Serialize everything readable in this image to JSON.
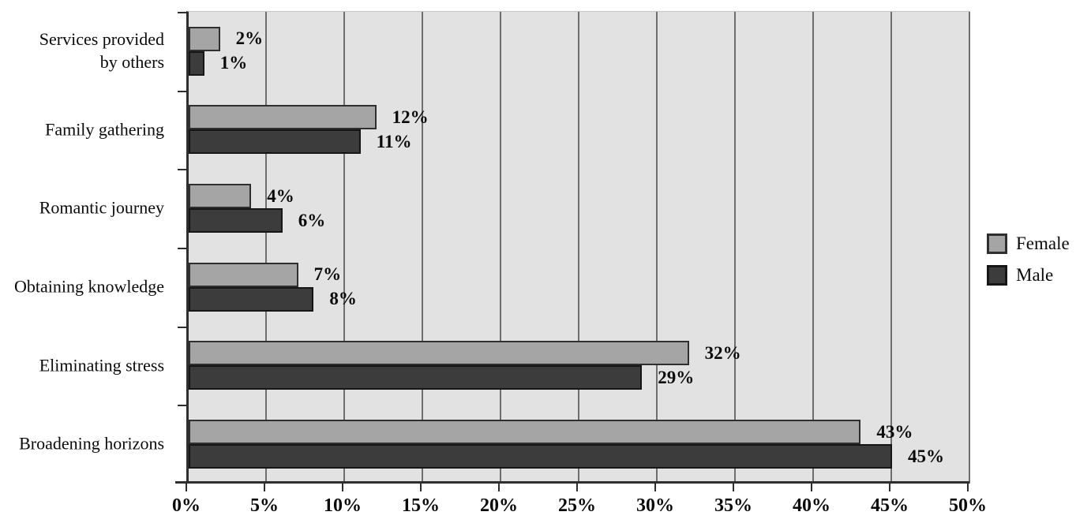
{
  "chart_data": {
    "type": "bar",
    "orientation": "horizontal",
    "title": "",
    "categories": [
      "Services provided by others",
      "Family gathering",
      "Romantic journey",
      "Obtaining knowledge",
      "Eliminating stress",
      "Broadening horizons"
    ],
    "category_display_lines": [
      [
        "Services provided",
        "by others"
      ],
      [
        "Family gathering"
      ],
      [
        "Romantic journey"
      ],
      [
        "Obtaining knowledge"
      ],
      [
        "Eliminating stress"
      ],
      [
        "Broadening horizons"
      ]
    ],
    "series": [
      {
        "name": "Female",
        "values": [
          2,
          12,
          4,
          7,
          32,
          43
        ],
        "labels": [
          "2%",
          "12%",
          "4%",
          "7%",
          "32%",
          "43%"
        ],
        "color": "#a5a5a5",
        "border_color": "#2f2f2f"
      },
      {
        "name": "Male",
        "values": [
          1,
          11,
          6,
          8,
          29,
          45
        ],
        "labels": [
          "1%",
          "11%",
          "6%",
          "8%",
          "29%",
          "45%"
        ],
        "color": "#3c3c3c",
        "border_color": "#161616"
      }
    ],
    "x_axis": {
      "min": 0,
      "max": 50,
      "step": 5,
      "tick_labels": [
        "0%",
        "5%",
        "10%",
        "15%",
        "20%",
        "25%",
        "30%",
        "35%",
        "40%",
        "45%",
        "50%"
      ]
    },
    "legend": {
      "position": "right",
      "entries": [
        "Female",
        "Male"
      ]
    },
    "grid": "vertical-on",
    "colors": {
      "plot_background": "#e2e2e2",
      "gridline": "#6e6e6e",
      "axis": "#2f2f2f",
      "text": "#0a0a0a",
      "page_background": "#ffffff"
    }
  }
}
